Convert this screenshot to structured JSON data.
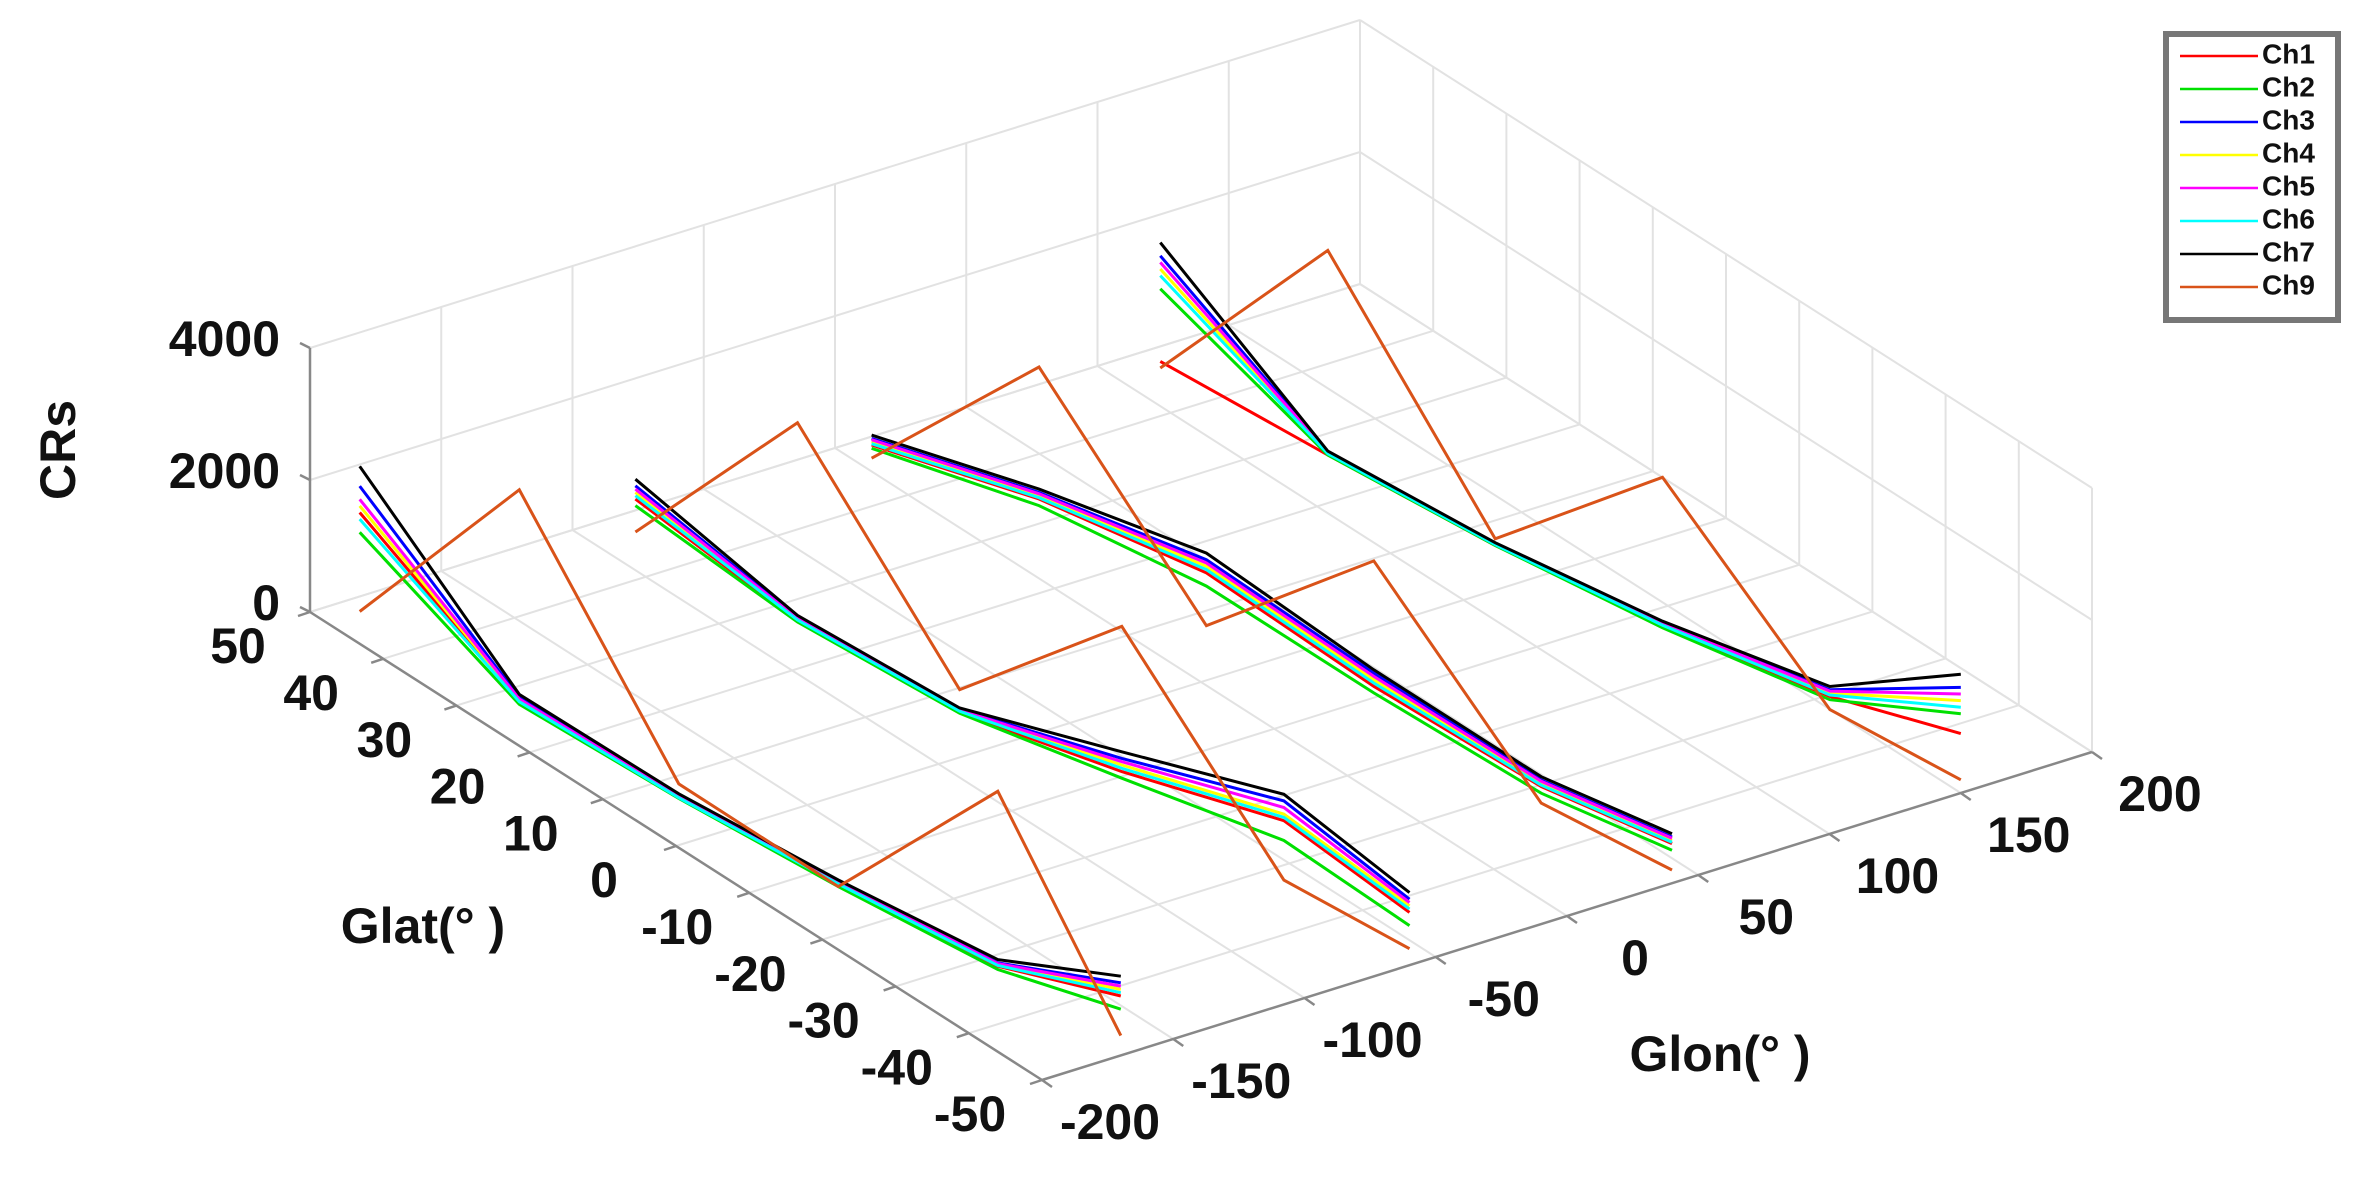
{
  "chart_data": {
    "type": "line3d",
    "xlabel": "Glon(° )",
    "ylabel": "Glat(° )",
    "zlabel": "CRs",
    "xlim": [
      -200,
      200
    ],
    "xticks": [
      -200,
      -150,
      -100,
      -50,
      0,
      50,
      100,
      150,
      200
    ],
    "ylim": [
      -50,
      50
    ],
    "yticks": [
      -50,
      -40,
      -30,
      -20,
      -10,
      0,
      10,
      20,
      30,
      40,
      50
    ],
    "zlim": [
      0,
      4000
    ],
    "zticks": [
      0,
      2000,
      4000
    ],
    "grid": true,
    "legend": "upper right",
    "x": [
      -195,
      -190,
      -185,
      -180,
      -175,
      -170,
      null,
      -90,
      -84,
      -78,
      -72,
      -66,
      -60,
      null,
      0,
      8,
      16,
      24,
      32,
      40,
      null,
      110,
      118,
      126,
      134,
      142,
      150
    ],
    "y": [
      45,
      25,
      5,
      -15,
      -35,
      -50,
      null,
      45,
      25,
      5,
      -15,
      -35,
      -50,
      null,
      45,
      25,
      5,
      -15,
      -35,
      -50,
      null,
      45,
      25,
      5,
      -15,
      -35,
      -50
    ],
    "series": [
      {
        "name": "Ch1",
        "color": "#ff0000",
        "values": [
          1800,
          300,
          200,
          250,
          350,
          900,
          null,
          700,
          200,
          150,
          600,
          1200,
          800,
          null,
          400,
          900,
          1100,
          700,
          500,
          600,
          null,
          300,
          200,
          150,
          250,
          500,
          900
        ]
      },
      {
        "name": "Ch2",
        "color": "#00e000",
        "values": [
          1500,
          250,
          180,
          200,
          300,
          700,
          null,
          600,
          180,
          140,
          500,
          900,
          600,
          null,
          350,
          800,
          900,
          600,
          400,
          500,
          null,
          1400,
          200,
          150,
          220,
          450,
          1200
        ]
      },
      {
        "name": "Ch3",
        "color": "#0000ff",
        "values": [
          2200,
          350,
          220,
          280,
          400,
          1100,
          null,
          900,
          250,
          200,
          800,
          1500,
          1000,
          null,
          500,
          1000,
          1300,
          900,
          600,
          700,
          null,
          1900,
          250,
          180,
          300,
          600,
          1600
        ]
      },
      {
        "name": "Ch4",
        "color": "#ffff00",
        "values": [
          1900,
          320,
          200,
          260,
          380,
          1000,
          null,
          800,
          220,
          180,
          700,
          1300,
          900,
          null,
          450,
          950,
          1200,
          800,
          550,
          650,
          null,
          1700,
          230,
          170,
          280,
          550,
          1400
        ]
      },
      {
        "name": "Ch5",
        "color": "#ff00ff",
        "values": [
          2000,
          330,
          210,
          270,
          390,
          1050,
          null,
          850,
          230,
          190,
          750,
          1400,
          950,
          null,
          480,
          980,
          1250,
          850,
          580,
          680,
          null,
          1800,
          240,
          175,
          290,
          580,
          1500
        ]
      },
      {
        "name": "Ch6",
        "color": "#00ffff",
        "values": [
          1700,
          290,
          190,
          240,
          360,
          950,
          null,
          750,
          210,
          170,
          650,
          1250,
          850,
          null,
          420,
          920,
          1150,
          750,
          520,
          620,
          null,
          1600,
          220,
          160,
          260,
          520,
          1300
        ]
      },
      {
        "name": "Ch7",
        "color": "#000000",
        "values": [
          2500,
          400,
          250,
          300,
          450,
          1200,
          null,
          1000,
          280,
          220,
          900,
          1600,
          1100,
          null,
          550,
          1050,
          1400,
          950,
          650,
          750,
          null,
          2100,
          260,
          190,
          320,
          650,
          1800
        ]
      },
      {
        "name": "Ch9",
        "color": "#d95319",
        "values": [
          300,
          3500,
          400,
          200,
          3000,
          300,
          null,
          200,
          3200,
          500,
          2800,
          300,
          250,
          null,
          200,
          2900,
          300,
          2600,
          250,
          200,
          null,
          200,
          3300,
          250,
          2500,
          300,
          200
        ]
      }
    ]
  }
}
